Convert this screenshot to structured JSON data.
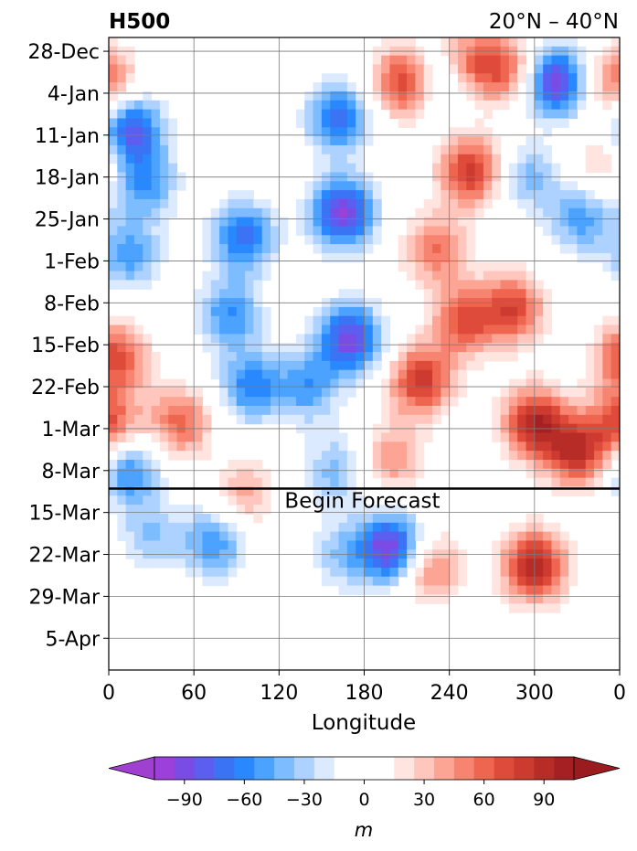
{
  "chart_data": {
    "type": "heatmap",
    "title": "H500",
    "subtitle": "20°N – 40°N",
    "xlabel": "Longitude",
    "ylabel": "",
    "x_ticks": [
      "0",
      "60",
      "120",
      "180",
      "240",
      "300",
      "0"
    ],
    "x_tick_values": [
      0,
      60,
      120,
      180,
      240,
      300,
      360
    ],
    "xlim": [
      0,
      360
    ],
    "y_ticks": [
      "28-Dec",
      "4-Jan",
      "11-Jan",
      "18-Jan",
      "25-Jan",
      "1-Feb",
      "8-Feb",
      "15-Feb",
      "22-Feb",
      "1-Mar",
      "8-Mar",
      "15-Mar",
      "22-Mar",
      "29-Mar",
      "5-Apr"
    ],
    "y_tick_days": [
      0,
      7,
      14,
      21,
      28,
      35,
      42,
      49,
      56,
      63,
      70,
      77,
      84,
      91,
      98
    ],
    "ylim_days": [
      -2.3,
      103.3
    ],
    "y_inverted": true,
    "grid": true,
    "forecast_line_day": 73,
    "forecast_label": "Begin Forecast",
    "colorbar": {
      "ticks": [
        "−90",
        "−60",
        "−30",
        "0",
        "30",
        "60",
        "90"
      ],
      "tick_values": [
        -90,
        -60,
        -30,
        0,
        30,
        60,
        90
      ],
      "range": [
        -105,
        105
      ],
      "extend": "both",
      "unit": "m",
      "levels": [
        -105,
        -95,
        -85,
        -75,
        -65,
        -55,
        -45,
        -35,
        -25,
        -15,
        15,
        25,
        35,
        45,
        55,
        65,
        75,
        85,
        95,
        105
      ],
      "colors": [
        "#9b40d8",
        "#7a4ce6",
        "#5c5ef0",
        "#3a74f5",
        "#2a88ff",
        "#4ba2ff",
        "#7cbcff",
        "#aed2ff",
        "#dceaff",
        "#ffffff",
        "#ffe4e0",
        "#ffc6bd",
        "#fda595",
        "#f78470",
        "#ee6550",
        "#df4b3a",
        "#cc3a30",
        "#b82c28",
        "#a42022"
      ],
      "under_color": "#a040d0",
      "over_color": "#9a1c1f"
    },
    "anomaly_centers_lon_day_amp_m": [
      [
        15,
        13,
        -85
      ],
      [
        25,
        22,
        -55
      ],
      [
        15,
        34,
        -50
      ],
      [
        95,
        31,
        -70
      ],
      [
        85,
        44,
        -55
      ],
      [
        100,
        56,
        -60
      ],
      [
        140,
        56,
        -50
      ],
      [
        165,
        27,
        -95
      ],
      [
        162,
        11,
        -70
      ],
      [
        170,
        48,
        -90
      ],
      [
        210,
        5,
        85
      ],
      [
        250,
        2,
        70
      ],
      [
        280,
        3,
        60
      ],
      [
        235,
        4,
        -65
      ],
      [
        315,
        5,
        -95
      ],
      [
        333,
        28,
        -50
      ],
      [
        358,
        5,
        60
      ],
      [
        295,
        21,
        -40
      ],
      [
        350,
        18,
        35
      ],
      [
        255,
        20,
        80
      ],
      [
        230,
        33,
        55
      ],
      [
        220,
        55,
        80
      ],
      [
        250,
        45,
        65
      ],
      [
        285,
        43,
        70
      ],
      [
        300,
        62,
        90
      ],
      [
        330,
        67,
        80
      ],
      [
        200,
        68,
        45
      ],
      [
        5,
        51,
        70
      ],
      [
        0,
        62,
        65
      ],
      [
        50,
        62,
        60
      ],
      [
        15,
        70,
        -60
      ],
      [
        160,
        70,
        -40
      ],
      [
        200,
        83,
        -100
      ],
      [
        165,
        84,
        -35
      ],
      [
        75,
        82,
        -55
      ],
      [
        30,
        81,
        -35
      ],
      [
        225,
        86,
        60
      ],
      [
        300,
        86,
        95
      ],
      [
        95,
        74,
        40
      ]
    ]
  }
}
